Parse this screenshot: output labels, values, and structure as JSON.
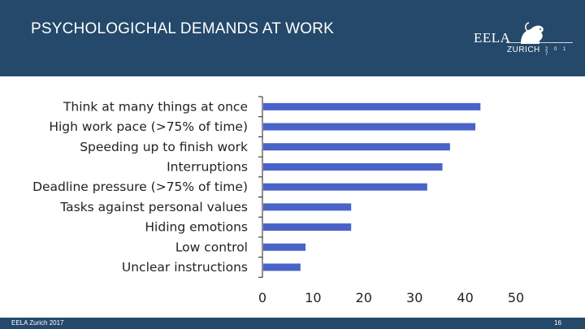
{
  "header": {
    "title": "PSYCHOLOGICHAL DEMANDS AT WORK",
    "logo": {
      "name": "EELA",
      "city": "ZURICH",
      "year": "2 0 1 7",
      "icon": "lion-icon"
    }
  },
  "footer": {
    "left": "EELA Zurich 2017",
    "page": "16"
  },
  "colors": {
    "header_bg": "#24496a",
    "bar": "#4a63c8",
    "axis": "#222222"
  },
  "chart_data": {
    "type": "bar",
    "orientation": "horizontal",
    "categories": [
      "Think at many things at once",
      "High work pace (>75% of time)",
      "Speeding up to finish work",
      "Interruptions",
      "Deadline pressure (>75% of time)",
      "Tasks against personal values",
      "Hiding emotions",
      "Low control",
      "Unclear instructions"
    ],
    "values": [
      43,
      42,
      37,
      35.5,
      32.5,
      17.5,
      17.5,
      8.5,
      7.5
    ],
    "xlim": [
      0,
      50
    ],
    "xticks": [
      0,
      10,
      20,
      30,
      40,
      50
    ],
    "title": "",
    "xlabel": "",
    "ylabel": "",
    "grid": false,
    "legend": "none"
  }
}
